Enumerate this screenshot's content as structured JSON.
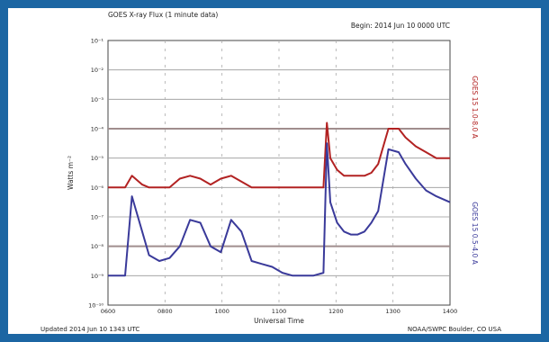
{
  "chart_data": {
    "type": "line",
    "title": "GOES X-ray Flux (1 minute data)",
    "begin": "Begin: 2014 Jun 10 0000 UTC",
    "xlabel": "Universal Time",
    "ylabel": "Watts m⁻²",
    "right_labels": [
      "GOES 15 0.5-4.0 A",
      "GOES 15 1.0-8.0 A"
    ],
    "x_ticks": [
      "0600",
      "0800",
      "1000",
      "1100",
      "1200",
      "1300",
      "1400"
    ],
    "y_ticks": [
      "10⁻¹",
      "10⁻²",
      "10⁻³",
      "10⁻⁴",
      "10⁻⁵",
      "10⁻⁶",
      "10⁻⁷",
      "10⁻⁸",
      "10⁻⁹",
      "10⁻¹⁰"
    ],
    "ylog": true,
    "ylim_exp": [
      -10,
      -1
    ],
    "x_points": [
      0.0,
      0.05,
      0.07,
      0.1,
      0.12,
      0.15,
      0.18,
      0.21,
      0.24,
      0.27,
      0.3,
      0.33,
      0.36,
      0.39,
      0.42,
      0.45,
      0.48,
      0.51,
      0.54,
      0.57,
      0.6,
      0.63,
      0.64,
      0.65,
      0.67,
      0.69,
      0.71,
      0.73,
      0.75,
      0.77,
      0.79,
      0.82,
      0.85,
      0.87,
      0.9,
      0.93,
      0.96,
      1.0
    ],
    "series": [
      {
        "color": "#b22222",
        "values_exp": [
          -6.0,
          -6.0,
          -5.6,
          -5.9,
          -6.0,
          -6.0,
          -6.0,
          -5.7,
          -5.6,
          -5.7,
          -5.9,
          -5.7,
          -5.6,
          -5.8,
          -6.0,
          -6.0,
          -6.0,
          -6.0,
          -6.0,
          -6.0,
          -6.0,
          -6.0,
          -3.8,
          -5.0,
          -5.4,
          -5.6,
          -5.6,
          -5.6,
          -5.6,
          -5.5,
          -5.2,
          -4.0,
          -4.0,
          -4.3,
          -4.6,
          -4.8,
          -5.0,
          -5.0
        ]
      },
      {
        "color": "#3a3a9a",
        "values_exp": [
          -9.0,
          -9.0,
          -6.3,
          -7.5,
          -8.3,
          -8.5,
          -8.4,
          -8.0,
          -7.1,
          -7.2,
          -8.0,
          -8.2,
          -7.1,
          -7.5,
          -8.5,
          -8.6,
          -8.7,
          -8.9,
          -9.0,
          -9.0,
          -9.0,
          -8.9,
          -4.5,
          -6.5,
          -7.2,
          -7.5,
          -7.6,
          -7.6,
          -7.5,
          -7.2,
          -6.8,
          -4.7,
          -4.8,
          -5.2,
          -5.7,
          -6.1,
          -6.3,
          -6.5
        ]
      }
    ],
    "grid": true,
    "legend": "right-side vertical labels"
  },
  "footer": {
    "updated": "Updated 2014 Jun 10 1343 UTC",
    "credit": "NOAA/SWPC Boulder, CO USA"
  }
}
